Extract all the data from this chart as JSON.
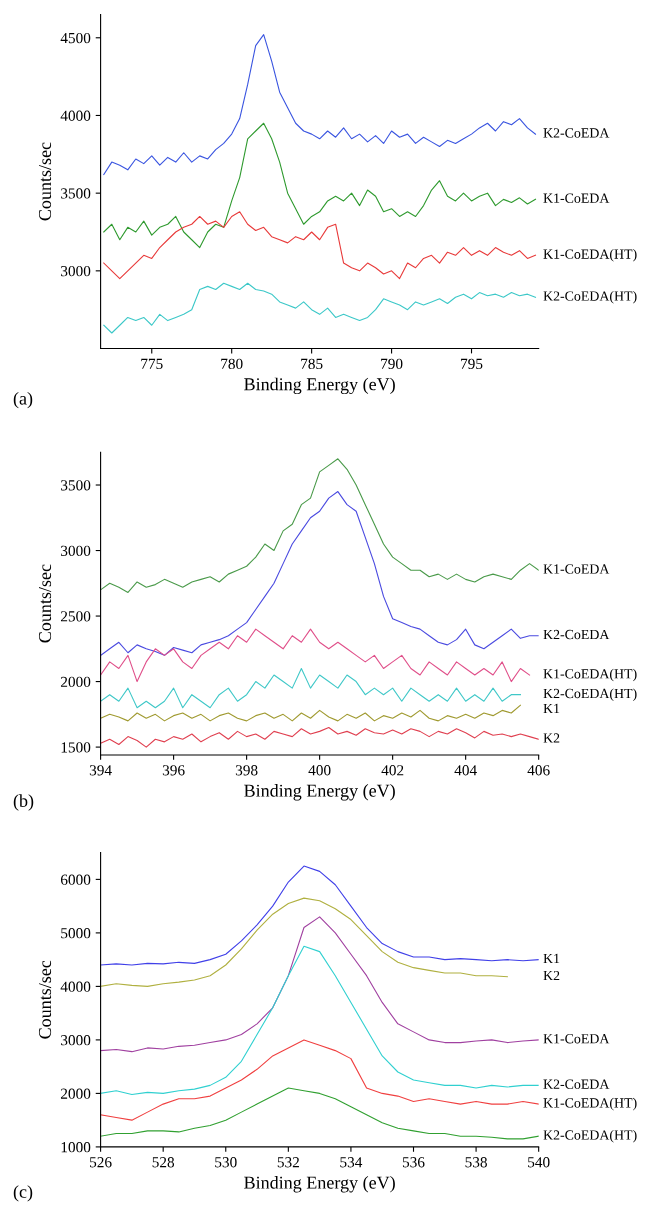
{
  "chart_data": [
    {
      "type": "line",
      "xlabel": "Binding Energy (eV)",
      "ylabel": "Counts/sec",
      "annotations": [
        "(a)"
      ],
      "xlim": [
        771.8,
        799.2
      ],
      "ylim": [
        2500,
        4650
      ],
      "xticks": [
        775,
        780,
        785,
        790,
        795
      ],
      "yticks": [
        3000,
        3500,
        4000,
        4500
      ],
      "grid": false,
      "x": [
        772,
        772.5,
        773,
        773.5,
        774,
        774.5,
        775,
        775.5,
        776,
        776.5,
        777,
        777.5,
        778,
        778.5,
        779,
        779.5,
        780,
        780.5,
        781,
        781.5,
        782,
        782.5,
        783,
        783.5,
        784,
        784.5,
        785,
        785.5,
        786,
        786.5,
        787,
        787.5,
        788,
        788.5,
        789,
        789.5,
        790,
        790.5,
        791,
        791.5,
        792,
        792.5,
        793,
        793.5,
        794,
        794.5,
        795,
        795.5,
        796,
        796.5,
        797,
        797.5,
        798,
        798.5,
        799
      ],
      "series": [
        {
          "name": "K2-CoEDA",
          "color": "#3a55e0",
          "values": [
            3620,
            3700,
            3680,
            3650,
            3720,
            3690,
            3740,
            3680,
            3730,
            3700,
            3760,
            3700,
            3740,
            3720,
            3780,
            3820,
            3880,
            3980,
            4200,
            4450,
            4520,
            4350,
            4150,
            4050,
            3950,
            3900,
            3880,
            3850,
            3900,
            3860,
            3920,
            3850,
            3880,
            3830,
            3870,
            3820,
            3900,
            3860,
            3880,
            3820,
            3860,
            3830,
            3800,
            3840,
            3820,
            3850,
            3880,
            3920,
            3950,
            3900,
            3960,
            3940,
            3980,
            3920,
            3880
          ]
        },
        {
          "name": "K1-CoEDA",
          "color": "#2f9a2f",
          "values": [
            3250,
            3300,
            3200,
            3280,
            3250,
            3320,
            3230,
            3280,
            3300,
            3350,
            3250,
            3200,
            3150,
            3250,
            3300,
            3280,
            3450,
            3600,
            3850,
            3900,
            3950,
            3850,
            3700,
            3500,
            3400,
            3300,
            3350,
            3380,
            3450,
            3480,
            3450,
            3500,
            3420,
            3520,
            3480,
            3380,
            3400,
            3350,
            3380,
            3350,
            3420,
            3520,
            3580,
            3480,
            3450,
            3500,
            3450,
            3480,
            3500,
            3420,
            3460,
            3440,
            3470,
            3430,
            3460
          ]
        },
        {
          "name": "K1-CoEDA(HT)",
          "color": "#e83a3a",
          "values": [
            3050,
            3000,
            2950,
            3000,
            3050,
            3100,
            3080,
            3150,
            3200,
            3250,
            3280,
            3300,
            3350,
            3300,
            3320,
            3280,
            3350,
            3380,
            3300,
            3260,
            3280,
            3220,
            3200,
            3180,
            3220,
            3200,
            3250,
            3200,
            3280,
            3300,
            3050,
            3020,
            3000,
            3050,
            3020,
            2980,
            3000,
            2950,
            3050,
            3020,
            3080,
            3100,
            3050,
            3120,
            3100,
            3150,
            3100,
            3130,
            3100,
            3150,
            3120,
            3100,
            3130,
            3080,
            3100
          ]
        },
        {
          "name": "K2-CoEDA(HT)",
          "color": "#3cc8c8",
          "values": [
            2650,
            2600,
            2650,
            2700,
            2680,
            2700,
            2650,
            2720,
            2680,
            2700,
            2720,
            2750,
            2880,
            2900,
            2880,
            2920,
            2900,
            2880,
            2920,
            2880,
            2870,
            2850,
            2800,
            2780,
            2760,
            2800,
            2750,
            2720,
            2760,
            2700,
            2720,
            2700,
            2680,
            2700,
            2750,
            2820,
            2800,
            2780,
            2750,
            2800,
            2780,
            2800,
            2820,
            2790,
            2830,
            2850,
            2820,
            2860,
            2840,
            2850,
            2830,
            2860,
            2840,
            2850,
            2830
          ]
        }
      ]
    },
    {
      "type": "line",
      "xlabel": "Binding Energy (eV)",
      "ylabel": "Counts/sec",
      "annotations": [
        "(b)"
      ],
      "xlim": [
        394,
        406
      ],
      "ylim": [
        1440,
        3750
      ],
      "xticks": [
        394,
        396,
        398,
        400,
        402,
        404,
        406
      ],
      "yticks": [
        1500,
        2000,
        2500,
        3000,
        3500
      ],
      "grid": false,
      "x": [
        394,
        394.25,
        394.5,
        394.75,
        395,
        395.25,
        395.5,
        395.75,
        396,
        396.25,
        396.5,
        396.75,
        397,
        397.25,
        397.5,
        397.75,
        398,
        398.25,
        398.5,
        398.75,
        399,
        399.25,
        399.5,
        399.75,
        400,
        400.25,
        400.5,
        400.75,
        401,
        401.25,
        401.5,
        401.75,
        402,
        402.25,
        402.5,
        402.75,
        403,
        403.25,
        403.5,
        403.75,
        404,
        404.25,
        404.5,
        404.75,
        405,
        405.25,
        405.5,
        405.75,
        406
      ],
      "series": [
        {
          "name": "K1-CoEDA",
          "color": "#4a9a4a",
          "values": [
            2700,
            2750,
            2720,
            2680,
            2760,
            2720,
            2740,
            2780,
            2750,
            2720,
            2760,
            2780,
            2800,
            2760,
            2820,
            2850,
            2880,
            2950,
            3050,
            3000,
            3150,
            3200,
            3350,
            3400,
            3600,
            3650,
            3700,
            3620,
            3500,
            3350,
            3200,
            3050,
            2950,
            2900,
            2850,
            2850,
            2800,
            2820,
            2780,
            2820,
            2780,
            2760,
            2800,
            2820,
            2800,
            2780,
            2850,
            2900,
            2850
          ]
        },
        {
          "name": "K2-CoEDA",
          "color": "#4a4ae0",
          "values": [
            2200,
            2250,
            2300,
            2220,
            2280,
            2250,
            2230,
            2200,
            2260,
            2240,
            2220,
            2280,
            2300,
            2320,
            2350,
            2400,
            2450,
            2550,
            2650,
            2750,
            2900,
            3050,
            3150,
            3250,
            3300,
            3400,
            3450,
            3350,
            3300,
            3100,
            2900,
            2650,
            2480,
            2450,
            2420,
            2400,
            2350,
            2300,
            2280,
            2320,
            2400,
            2280,
            2250,
            2300,
            2350,
            2400,
            2330,
            2350,
            2350
          ]
        },
        {
          "name": "K1-CoEDA(HT)",
          "color": "#e0508a",
          "values": [
            2050,
            2150,
            2100,
            2200,
            2000,
            2150,
            2250,
            2200,
            2250,
            2150,
            2100,
            2200,
            2250,
            2300,
            2250,
            2350,
            2300,
            2400,
            2350,
            2300,
            2250,
            2350,
            2300,
            2400,
            2300,
            2250,
            2300,
            2250,
            2200,
            2150,
            2200,
            2100,
            2150,
            2200,
            2100,
            2050,
            2150,
            2100,
            2050,
            2150,
            2100,
            2050,
            2100,
            2050,
            2150,
            2000,
            2100,
            2050,
            null
          ]
        },
        {
          "name": "K2-CoEDA(HT)",
          "color": "#40c8c8",
          "values": [
            1850,
            1900,
            1850,
            1950,
            1800,
            1850,
            1800,
            1850,
            1950,
            1800,
            1900,
            1850,
            1800,
            1900,
            1950,
            1850,
            1900,
            2000,
            1950,
            2050,
            2000,
            1950,
            2100,
            1950,
            2050,
            2000,
            1950,
            2050,
            2000,
            1900,
            1950,
            1900,
            1950,
            1850,
            1950,
            1900,
            1850,
            1900,
            1850,
            1950,
            1850,
            1900,
            1850,
            1950,
            1850,
            1900,
            1900,
            null,
            null
          ]
        },
        {
          "name": "K1",
          "color": "#a09a30",
          "values": [
            1720,
            1750,
            1730,
            1700,
            1760,
            1720,
            1750,
            1700,
            1740,
            1760,
            1720,
            1750,
            1700,
            1740,
            1760,
            1720,
            1700,
            1740,
            1760,
            1720,
            1750,
            1700,
            1760,
            1720,
            1780,
            1730,
            1700,
            1750,
            1720,
            1760,
            1700,
            1740,
            1720,
            1760,
            1730,
            1780,
            1720,
            1700,
            1740,
            1720,
            1750,
            1720,
            1760,
            1740,
            1780,
            1760,
            1820,
            null,
            null
          ]
        },
        {
          "name": "K2",
          "color": "#e04050",
          "values": [
            1530,
            1560,
            1520,
            1580,
            1550,
            1500,
            1560,
            1540,
            1580,
            1560,
            1600,
            1540,
            1580,
            1610,
            1560,
            1620,
            1580,
            1600,
            1560,
            1620,
            1600,
            1580,
            1640,
            1600,
            1620,
            1650,
            1600,
            1620,
            1590,
            1640,
            1610,
            1600,
            1630,
            1600,
            1640,
            1620,
            1580,
            1620,
            1600,
            1640,
            1610,
            1570,
            1620,
            1590,
            1600,
            1580,
            1600,
            1580,
            1560
          ]
        }
      ]
    },
    {
      "type": "line",
      "xlabel": "Binding Energy (eV)",
      "ylabel": "Counts/sec",
      "annotations": [
        "(c)"
      ],
      "xlim": [
        526,
        540
      ],
      "ylim": [
        1000,
        6500
      ],
      "xticks": [
        526,
        528,
        530,
        532,
        534,
        536,
        538,
        540
      ],
      "yticks": [
        1000,
        2000,
        3000,
        4000,
        5000,
        6000
      ],
      "grid": false,
      "x": [
        526,
        526.5,
        527,
        527.5,
        528,
        528.5,
        529,
        529.5,
        530,
        530.5,
        531,
        531.5,
        532,
        532.5,
        533,
        533.5,
        534,
        534.5,
        535,
        535.5,
        536,
        536.5,
        537,
        537.5,
        538,
        538.5,
        539,
        539.5,
        540
      ],
      "series": [
        {
          "name": "K1",
          "color": "#4040e8",
          "values": [
            4400,
            4420,
            4400,
            4430,
            4420,
            4450,
            4430,
            4500,
            4600,
            4850,
            5150,
            5500,
            5950,
            6250,
            6150,
            5900,
            5500,
            5100,
            4800,
            4650,
            4550,
            4550,
            4500,
            4520,
            4500,
            4480,
            4500,
            4480,
            4500
          ]
        },
        {
          "name": "K2",
          "color": "#b0b040",
          "values": [
            4000,
            4050,
            4020,
            4000,
            4050,
            4080,
            4120,
            4200,
            4400,
            4700,
            5050,
            5350,
            5550,
            5650,
            5600,
            5450,
            5250,
            4950,
            4650,
            4450,
            4350,
            4300,
            4250,
            4250,
            4200,
            4200,
            4180,
            null,
            null
          ]
        },
        {
          "name": "K1-CoEDA",
          "color": "#a040a0",
          "values": [
            2800,
            2820,
            2780,
            2850,
            2830,
            2880,
            2900,
            2950,
            3000,
            3100,
            3300,
            3600,
            4200,
            5100,
            5300,
            5000,
            4600,
            4200,
            3700,
            3300,
            3150,
            3000,
            2950,
            2950,
            2980,
            3000,
            2950,
            2980,
            3000
          ]
        },
        {
          "name": "K2-CoEDA",
          "color": "#30d0d0",
          "values": [
            2000,
            2050,
            1980,
            2020,
            2000,
            2050,
            2080,
            2150,
            2300,
            2600,
            3100,
            3600,
            4200,
            4750,
            4650,
            4200,
            3700,
            3200,
            2700,
            2400,
            2250,
            2200,
            2150,
            2150,
            2100,
            2150,
            2120,
            2150,
            2150
          ]
        },
        {
          "name": "K1-CoEDA(HT)",
          "color": "#f04040",
          "values": [
            1600,
            1550,
            1500,
            1650,
            1800,
            1900,
            1900,
            1950,
            2100,
            2250,
            2450,
            2700,
            2850,
            3000,
            2900,
            2800,
            2650,
            2100,
            2000,
            1950,
            1850,
            1900,
            1850,
            1800,
            1850,
            1800,
            1800,
            1850,
            1800
          ]
        },
        {
          "name": "K2-CoEDA(HT)",
          "color": "#30a030",
          "values": [
            1200,
            1250,
            1250,
            1300,
            1300,
            1280,
            1350,
            1400,
            1500,
            1650,
            1800,
            1950,
            2100,
            2050,
            2000,
            1900,
            1750,
            1600,
            1450,
            1350,
            1300,
            1250,
            1250,
            1200,
            1200,
            1180,
            1150,
            1150,
            1200
          ]
        }
      ]
    }
  ]
}
